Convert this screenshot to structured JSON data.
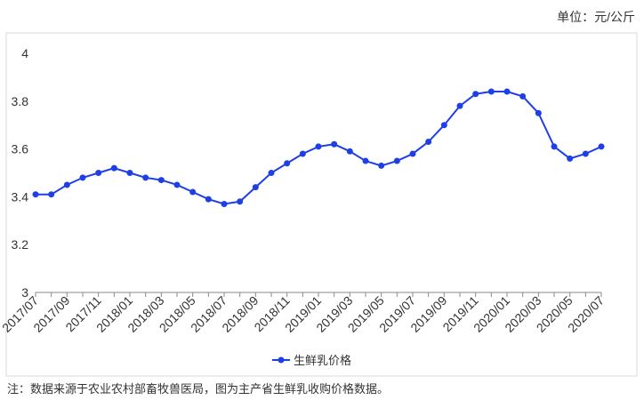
{
  "chart_data": {
    "type": "line",
    "unit": "单位：元/公斤",
    "note": "注：数据来源于农业农村部畜牧兽医局，图为主产省生鲜乳收购价格数据。",
    "categories": [
      "2017/07",
      null,
      "2017/09",
      null,
      "2017/11",
      null,
      "2018/01",
      null,
      "2018/03",
      null,
      "2018/05",
      null,
      "2018/07",
      null,
      "2018/09",
      null,
      "2018/11",
      null,
      "2019/01",
      null,
      "2019/03",
      null,
      "2019/05",
      null,
      "2019/07",
      null,
      "2019/09",
      null,
      "2019/11",
      null,
      "2020/01",
      null,
      "2020/03",
      null,
      "2020/05",
      null,
      "2020/07"
    ],
    "series": [
      {
        "name": "生鲜乳价格",
        "color": "#1f3fe6",
        "values": [
          3.41,
          3.41,
          3.45,
          3.48,
          3.5,
          3.52,
          3.5,
          3.48,
          3.47,
          3.45,
          3.42,
          3.39,
          3.37,
          3.38,
          3.44,
          3.5,
          3.54,
          3.58,
          3.61,
          3.62,
          3.59,
          3.55,
          3.53,
          3.55,
          3.58,
          3.63,
          3.7,
          3.78,
          3.83,
          3.84,
          3.84,
          3.82,
          3.75,
          3.61,
          3.56,
          3.58,
          3.61
        ]
      }
    ],
    "ylim": [
      3,
      4
    ],
    "yticks": [
      3,
      3.2,
      3.4,
      3.6,
      3.8,
      4
    ],
    "grid": false,
    "legend": "bottom"
  }
}
